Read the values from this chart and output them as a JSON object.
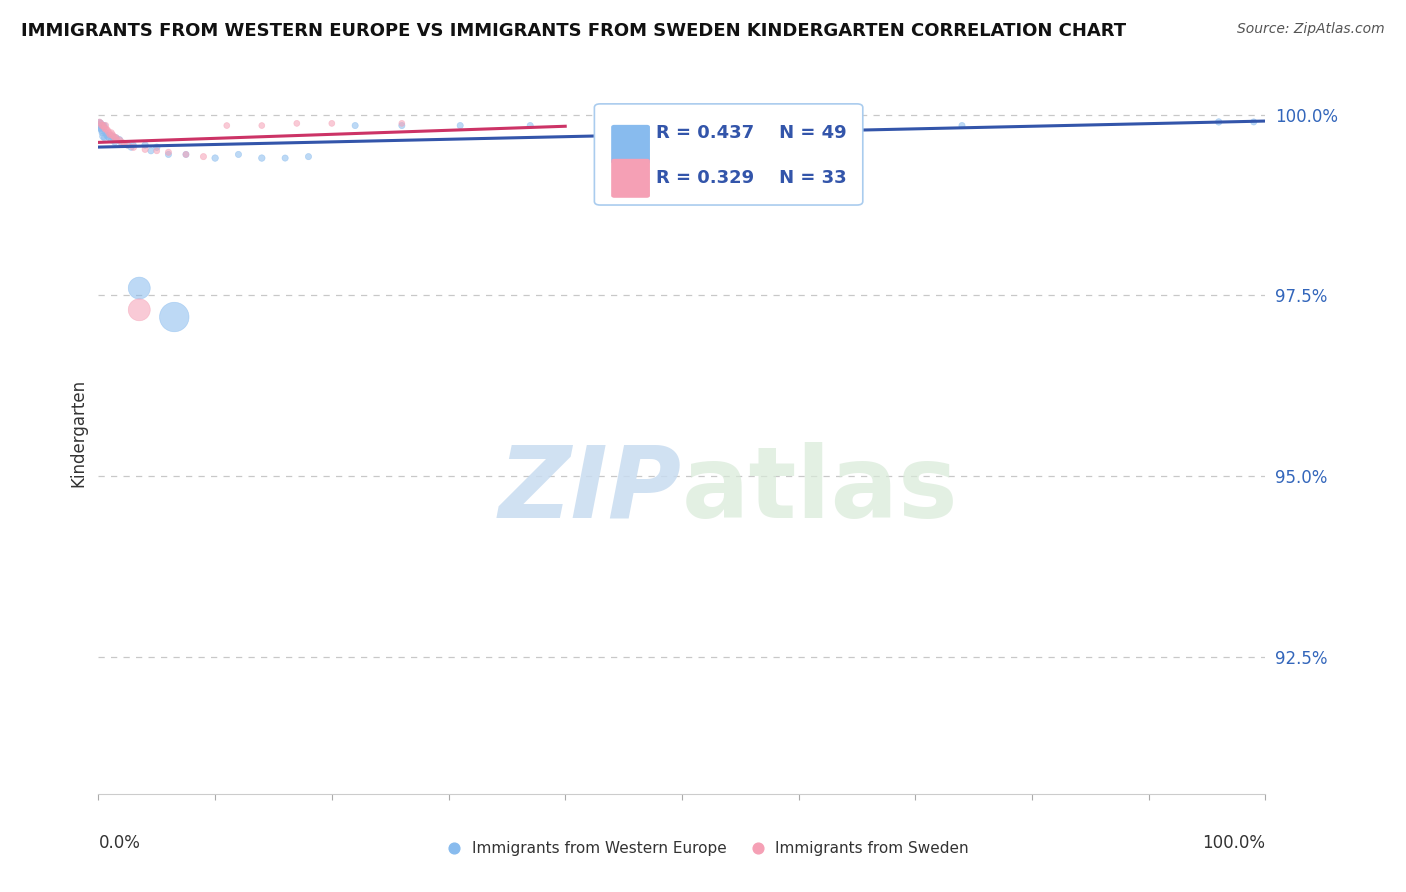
{
  "title": "IMMIGRANTS FROM WESTERN EUROPE VS IMMIGRANTS FROM SWEDEN KINDERGARTEN CORRELATION CHART",
  "source": "Source: ZipAtlas.com",
  "ylabel": "Kindergarten",
  "ytick_labels": [
    "92.5%",
    "95.0%",
    "97.5%",
    "100.0%"
  ],
  "ytick_values": [
    0.925,
    0.95,
    0.975,
    1.0
  ],
  "xlim": [
    0.0,
    1.0
  ],
  "ylim": [
    0.906,
    1.006
  ],
  "legend_blue_R": "R = 0.437",
  "legend_blue_N": "N = 49",
  "legend_pink_R": "R = 0.329",
  "legend_pink_N": "N = 33",
  "legend_blue_label": "Immigrants from Western Europe",
  "legend_pink_label": "Immigrants from Sweden",
  "blue_color": "#88BBEE",
  "pink_color": "#F5A0B5",
  "blue_line_color": "#3355AA",
  "pink_line_color": "#CC3366",
  "watermark_zip": "ZIP",
  "watermark_atlas": "atlas",
  "blue_scatter_x": [
    0.001,
    0.001,
    0.002,
    0.002,
    0.002,
    0.003,
    0.003,
    0.003,
    0.004,
    0.004,
    0.005,
    0.005,
    0.006,
    0.007,
    0.008,
    0.009,
    0.01,
    0.011,
    0.012,
    0.013,
    0.014,
    0.015,
    0.018,
    0.02,
    0.022,
    0.025,
    0.028,
    0.03,
    0.035,
    0.04,
    0.045,
    0.05,
    0.06,
    0.065,
    0.075,
    0.1,
    0.12,
    0.14,
    0.16,
    0.18,
    0.22,
    0.26,
    0.31,
    0.37,
    0.48,
    0.54,
    0.74,
    0.96,
    0.99
  ],
  "blue_scatter_y": [
    0.999,
    0.9985,
    0.9988,
    0.9982,
    0.998,
    0.9985,
    0.9978,
    0.9975,
    0.9985,
    0.997,
    0.9985,
    0.9968,
    0.9975,
    0.9972,
    0.997,
    0.9968,
    0.9972,
    0.9965,
    0.997,
    0.9965,
    0.9962,
    0.9968,
    0.9965,
    0.996,
    0.996,
    0.9958,
    0.9955,
    0.9958,
    0.976,
    0.9958,
    0.995,
    0.9955,
    0.9945,
    0.972,
    0.9945,
    0.994,
    0.9945,
    0.994,
    0.994,
    0.9942,
    0.9985,
    0.9985,
    0.9985,
    0.9985,
    0.9985,
    0.9985,
    0.9985,
    0.999,
    0.999
  ],
  "blue_scatter_size": [
    15,
    18,
    20,
    22,
    18,
    20,
    22,
    18,
    20,
    25,
    20,
    18,
    22,
    20,
    22,
    20,
    18,
    20,
    22,
    18,
    20,
    22,
    25,
    22,
    20,
    22,
    20,
    18,
    250,
    22,
    20,
    22,
    20,
    450,
    20,
    22,
    20,
    22,
    20,
    20,
    20,
    20,
    20,
    20,
    22,
    20,
    20,
    22,
    20
  ],
  "pink_scatter_x": [
    0.001,
    0.002,
    0.003,
    0.004,
    0.005,
    0.006,
    0.006,
    0.007,
    0.008,
    0.009,
    0.01,
    0.011,
    0.012,
    0.013,
    0.014,
    0.015,
    0.016,
    0.018,
    0.02,
    0.022,
    0.025,
    0.03,
    0.035,
    0.04,
    0.05,
    0.06,
    0.075,
    0.09,
    0.11,
    0.14,
    0.17,
    0.2,
    0.26
  ],
  "pink_scatter_y": [
    0.999,
    0.9988,
    0.9985,
    0.9985,
    0.9982,
    0.9985,
    0.998,
    0.998,
    0.9978,
    0.9975,
    0.9972,
    0.9975,
    0.9972,
    0.997,
    0.9968,
    0.9968,
    0.9965,
    0.9965,
    0.9962,
    0.996,
    0.9958,
    0.9955,
    0.973,
    0.9952,
    0.995,
    0.9948,
    0.9945,
    0.9942,
    0.9985,
    0.9985,
    0.9988,
    0.9988,
    0.9988
  ],
  "pink_scatter_size": [
    18,
    20,
    22,
    20,
    18,
    22,
    20,
    18,
    20,
    22,
    18,
    20,
    22,
    18,
    20,
    22,
    18,
    20,
    22,
    18,
    20,
    22,
    250,
    20,
    18,
    20,
    18,
    20,
    18,
    18,
    18,
    18,
    18
  ]
}
